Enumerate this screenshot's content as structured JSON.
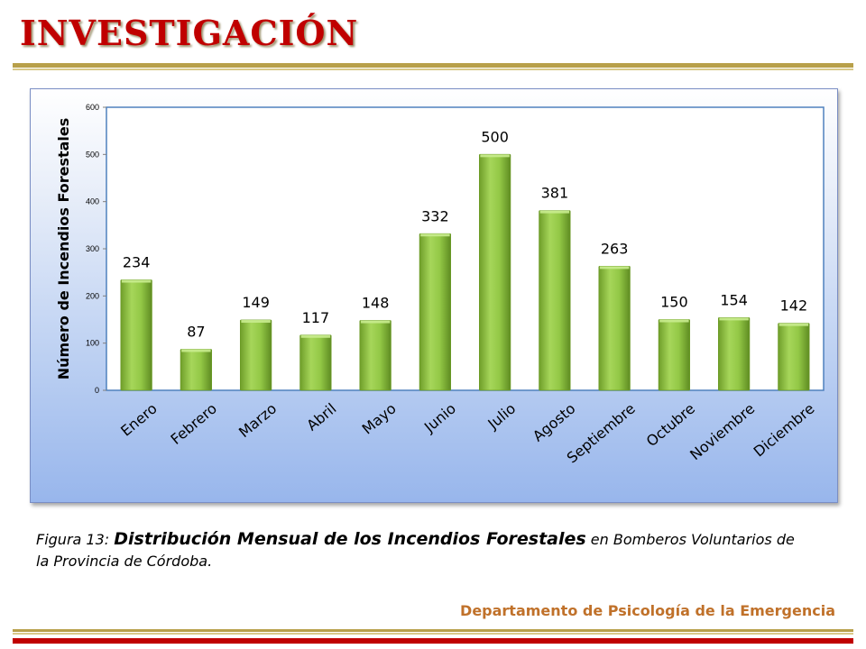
{
  "header": {
    "title": "INVESTIGACIÓN"
  },
  "caption": {
    "prefix": "Figura 13: ",
    "emphasis": "Distribución Mensual de los Incendios Forestales",
    "suffix": " en Bomberos Voluntarios de la Provincia de Córdoba."
  },
  "footer": {
    "text": "Departamento de Psicología de la Emergencia"
  },
  "colors": {
    "title": "#c00000",
    "bar": "#8cc13a",
    "footer": "#c0712a",
    "plot_border": "#4f81bd"
  },
  "chart_data": {
    "type": "bar",
    "ylabel": "Número de Incendios Forestales",
    "xlabel": "",
    "categories": [
      "Enero",
      "Febrero",
      "Marzo",
      "Abril",
      "Mayo",
      "Junio",
      "Julio",
      "Agosto",
      "Septiembre",
      "Octubre",
      "Noviembre",
      "Diciembre"
    ],
    "values": [
      234,
      87,
      149,
      117,
      148,
      332,
      500,
      381,
      263,
      150,
      154,
      142
    ],
    "ylim": [
      0,
      600
    ],
    "yticks": [
      0,
      100,
      200,
      300,
      400,
      500,
      600
    ],
    "grid": false,
    "legend": "none"
  }
}
